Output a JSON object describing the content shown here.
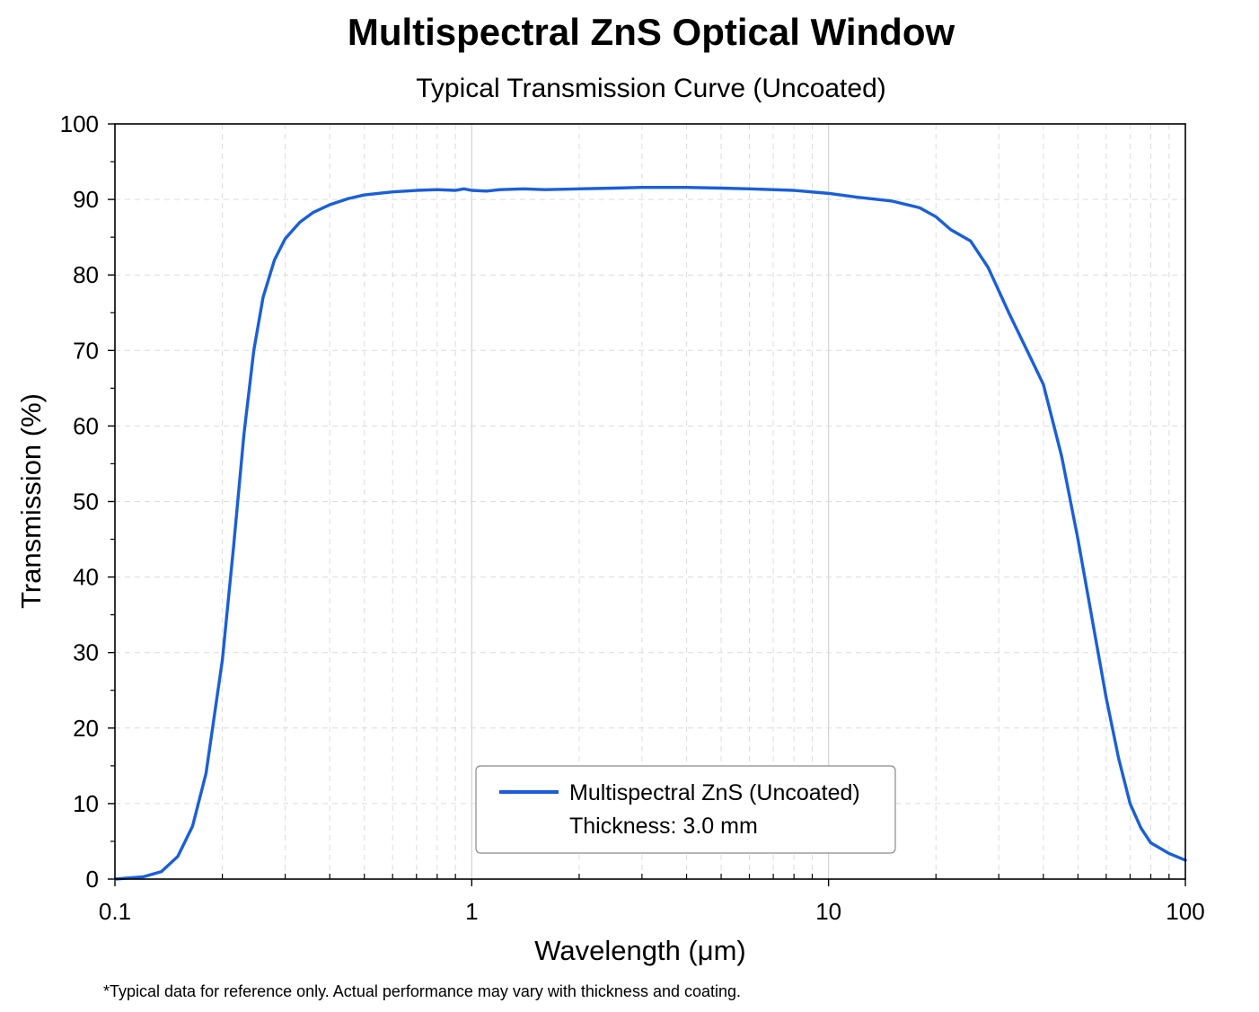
{
  "chart_data": {
    "type": "line",
    "title": "Multispectral ZnS Optical Window",
    "subtitle": "Typical Transmission Curve (Uncoated)",
    "xlabel": "Wavelength (μm)",
    "ylabel": "Transmission (%)",
    "x_scale": "log",
    "xlim": [
      0.1,
      100
    ],
    "ylim": [
      0,
      100
    ],
    "x_ticks": [
      0.1,
      1,
      10,
      100
    ],
    "x_tick_labels": [
      "0.1",
      "1",
      "10",
      "100"
    ],
    "y_ticks": [
      0,
      10,
      20,
      30,
      40,
      50,
      60,
      70,
      80,
      90,
      100
    ],
    "y_tick_labels": [
      "0",
      "10",
      "20",
      "30",
      "40",
      "50",
      "60",
      "70",
      "80",
      "90",
      "100"
    ],
    "grid": true,
    "legend": {
      "placement": "bottom-center",
      "entries": [
        "Multispectral ZnS (Uncoated)"
      ],
      "note": "Thickness: 3.0 mm"
    },
    "footnote": "*Typical data for reference only. Actual performance may vary with thickness and coating.",
    "series": [
      {
        "name": "Multispectral ZnS (Uncoated)",
        "color": "#1a5fd8",
        "x": [
          0.1,
          0.12,
          0.135,
          0.15,
          0.165,
          0.18,
          0.2,
          0.215,
          0.23,
          0.245,
          0.26,
          0.28,
          0.3,
          0.33,
          0.36,
          0.4,
          0.45,
          0.5,
          0.6,
          0.7,
          0.8,
          0.9,
          0.95,
          1.0,
          1.1,
          1.2,
          1.4,
          1.6,
          2.0,
          2.5,
          3.0,
          4.0,
          5.0,
          6.0,
          8.0,
          10.0,
          12.0,
          15.0,
          18.0,
          20.0,
          22.0,
          25.0,
          28.0,
          32.0,
          36.0,
          40.0,
          45.0,
          50.0,
          55.0,
          60.0,
          65.0,
          70.0,
          75.0,
          80.0,
          90.0,
          100.0
        ],
        "y": [
          0,
          0.3,
          1,
          3,
          7,
          14,
          29,
          44,
          59,
          70,
          77,
          82,
          84.8,
          87,
          88.3,
          89.3,
          90.1,
          90.6,
          91.0,
          91.2,
          91.3,
          91.2,
          91.4,
          91.2,
          91.1,
          91.3,
          91.4,
          91.3,
          91.4,
          91.5,
          91.6,
          91.6,
          91.5,
          91.4,
          91.2,
          90.8,
          90.3,
          89.8,
          88.9,
          87.7,
          86.0,
          84.5,
          81.0,
          75.0,
          70.0,
          65.5,
          56.0,
          45.0,
          34.0,
          24.0,
          16.0,
          10.0,
          6.8,
          4.8,
          3.4,
          2.5
        ]
      }
    ]
  }
}
